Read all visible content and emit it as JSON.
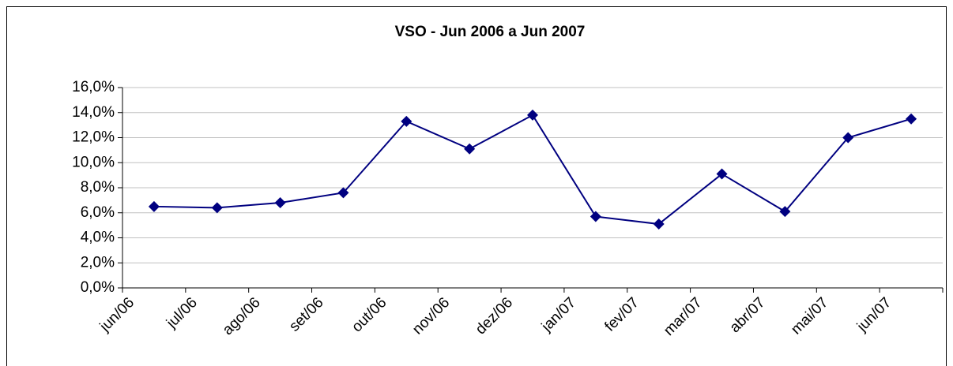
{
  "chart_data": {
    "type": "line",
    "title": "VSO - Jun 2006 a Jun 2007",
    "categories": [
      "jun/06",
      "jul/06",
      "ago/06",
      "set/06",
      "out/06",
      "nov/06",
      "dez/06",
      "jan/07",
      "fev/07",
      "mar/07",
      "abr/07",
      "mai/07",
      "jun/07"
    ],
    "series": [
      {
        "name": "VSO",
        "color": "#000080",
        "values": [
          6.5,
          6.4,
          6.8,
          7.6,
          13.3,
          11.1,
          13.8,
          5.7,
          5.1,
          9.1,
          6.1,
          12.0,
          13.5
        ]
      }
    ],
    "ylim": [
      0,
      16
    ],
    "yticks": [
      {
        "value": 0,
        "label": "0,0%"
      },
      {
        "value": 2,
        "label": "2,0%"
      },
      {
        "value": 4,
        "label": "4,0%"
      },
      {
        "value": 6,
        "label": "6,0%"
      },
      {
        "value": 8,
        "label": "8,0%"
      },
      {
        "value": 10,
        "label": "10,0%"
      },
      {
        "value": 12,
        "label": "12,0%"
      },
      {
        "value": 14,
        "label": "14,0%"
      },
      {
        "value": 16,
        "label": "16,0%"
      }
    ],
    "grid": true
  }
}
